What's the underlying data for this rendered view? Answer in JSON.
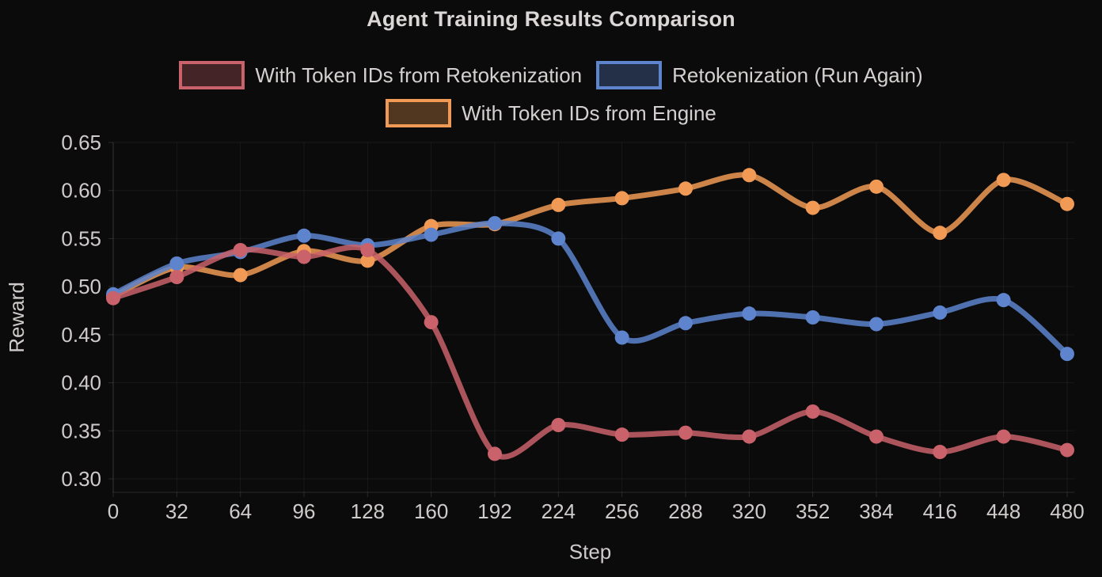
{
  "chart_data": {
    "type": "line",
    "title": "Agent Training Results Comparison",
    "xlabel": "Step",
    "ylabel": "Reward",
    "background": "#0b0b0b",
    "text_color": "#d5d0d0",
    "grid": true,
    "legend_position": "top",
    "xlim": [
      0,
      480
    ],
    "ylim": [
      0.286,
      0.65
    ],
    "x_ticks": [
      0,
      32,
      64,
      96,
      128,
      160,
      192,
      224,
      256,
      288,
      320,
      352,
      384,
      416,
      448,
      480
    ],
    "y_ticks": [
      0.3,
      0.35,
      0.4,
      0.45,
      0.5,
      0.55,
      0.6,
      0.65
    ],
    "x": [
      0,
      32,
      64,
      96,
      128,
      160,
      192,
      224,
      256,
      288,
      320,
      352,
      384,
      416,
      448,
      480
    ],
    "series": [
      {
        "name": "With Token IDs from Retokenization",
        "color": "#c9626a",
        "legend_fill": "#452428",
        "values": [
          0.488,
          0.51,
          0.538,
          0.531,
          0.538,
          0.463,
          0.326,
          0.356,
          0.346,
          0.348,
          0.344,
          0.37,
          0.344,
          0.328,
          0.344,
          0.33
        ]
      },
      {
        "name": "Retokenization (Run Again)",
        "color": "#5d84cd",
        "legend_fill": "#243048",
        "values": [
          0.492,
          0.524,
          0.536,
          0.553,
          0.543,
          0.554,
          0.566,
          0.55,
          0.447,
          0.462,
          0.472,
          0.468,
          0.461,
          0.473,
          0.486,
          0.43
        ]
      },
      {
        "name": "With Token IDs from Engine",
        "color": "#f09a55",
        "legend_fill": "#513620",
        "values": [
          0.49,
          0.52,
          0.512,
          0.537,
          0.527,
          0.563,
          0.565,
          0.585,
          0.592,
          0.602,
          0.616,
          0.582,
          0.604,
          0.556,
          0.611,
          0.586
        ]
      }
    ]
  }
}
